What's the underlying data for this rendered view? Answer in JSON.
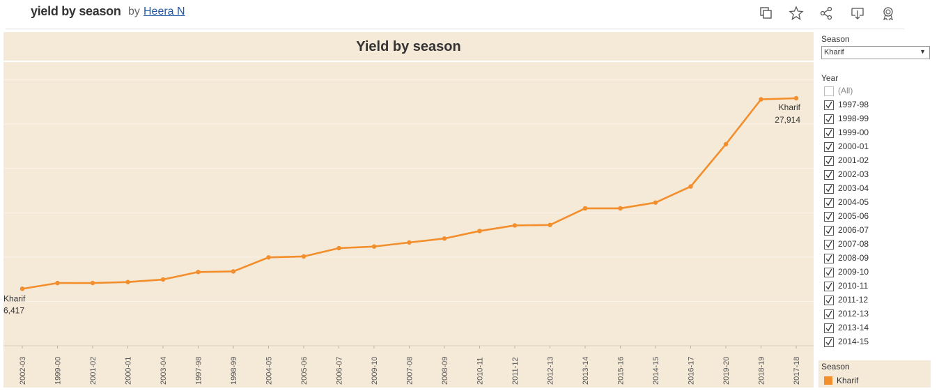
{
  "header": {
    "title": "yield by season",
    "by": "by",
    "author": "Heera N"
  },
  "toolbar_icons": [
    "copy-icon",
    "star-icon",
    "share-icon",
    "download-icon",
    "badge-icon"
  ],
  "filters": {
    "season_label": "Season",
    "season_value": "Kharif",
    "year_label": "Year",
    "years": [
      {
        "label": "(All)",
        "checked": false
      },
      {
        "label": "1997-98",
        "checked": true
      },
      {
        "label": "1998-99",
        "checked": true
      },
      {
        "label": "1999-00",
        "checked": true
      },
      {
        "label": "2000-01",
        "checked": true
      },
      {
        "label": "2001-02",
        "checked": true
      },
      {
        "label": "2002-03",
        "checked": true
      },
      {
        "label": "2003-04",
        "checked": true
      },
      {
        "label": "2004-05",
        "checked": true
      },
      {
        "label": "2005-06",
        "checked": true
      },
      {
        "label": "2006-07",
        "checked": true
      },
      {
        "label": "2007-08",
        "checked": true
      },
      {
        "label": "2008-09",
        "checked": true
      },
      {
        "label": "2009-10",
        "checked": true
      },
      {
        "label": "2010-11",
        "checked": true
      },
      {
        "label": "2011-12",
        "checked": true
      },
      {
        "label": "2012-13",
        "checked": true
      },
      {
        "label": "2013-14",
        "checked": true
      },
      {
        "label": "2014-15",
        "checked": true
      }
    ]
  },
  "legend": {
    "title": "Season",
    "items": [
      {
        "label": "Kharif",
        "color": "#f28e2b"
      }
    ]
  },
  "chart_data": {
    "type": "line",
    "title": "Yield by season",
    "xlabel": "",
    "ylabel": "",
    "categories": [
      "2002-03",
      "1999-00",
      "2001-02",
      "2000-01",
      "2003-04",
      "1997-98",
      "1998-99",
      "2004-05",
      "2005-06",
      "2006-07",
      "2009-10",
      "2007-08",
      "2008-09",
      "2010-11",
      "2011-12",
      "2012-13",
      "2013-14",
      "2015-16",
      "2014-15",
      "2016-17",
      "2019-20",
      "2018-19",
      "2017-18"
    ],
    "series": [
      {
        "name": "Kharif",
        "color": "#f28e2b",
        "values": [
          6417,
          7067,
          7073,
          7176,
          7467,
          8312,
          8379,
          9962,
          10065,
          11006,
          11184,
          11645,
          12091,
          12938,
          13566,
          13620,
          15494,
          15494,
          16144,
          17957,
          22724,
          27793,
          27914
        ]
      }
    ],
    "ylim": [
      0,
      32000
    ],
    "annotations": [
      {
        "index": 0,
        "text": "Kharif",
        "value_text": "6,417"
      },
      {
        "index": 22,
        "text": "Kharif",
        "value_text": "27,914"
      }
    ],
    "grid": true,
    "legend_position": "right"
  }
}
